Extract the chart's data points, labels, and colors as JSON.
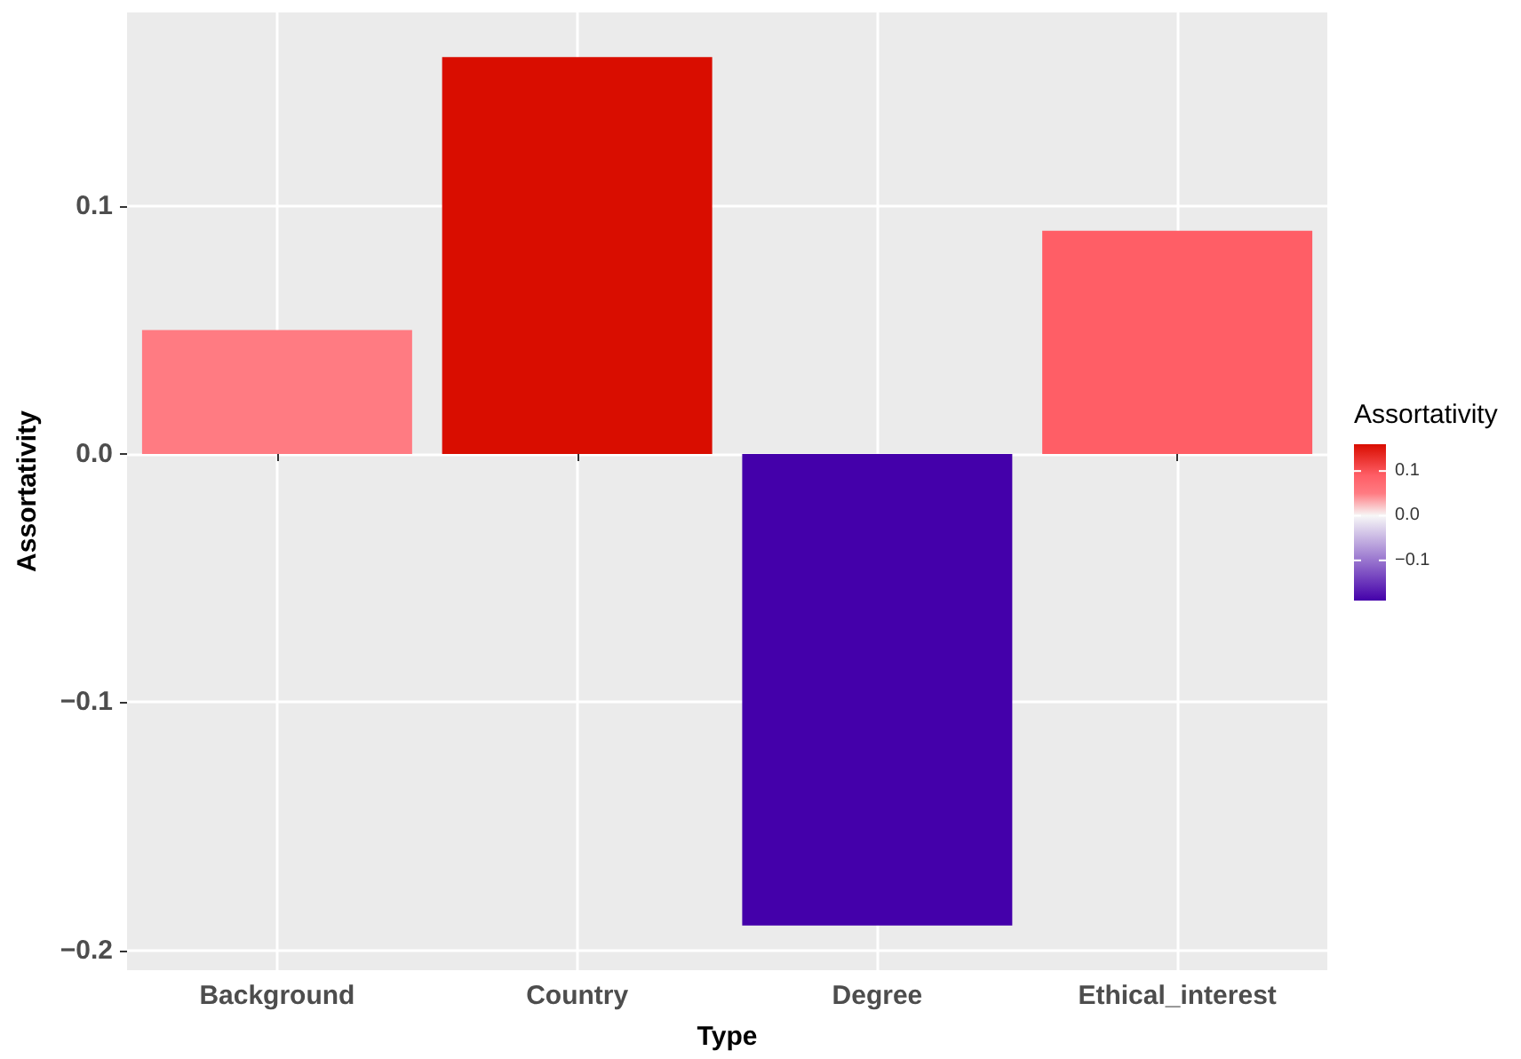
{
  "chart_data": {
    "type": "bar",
    "xlabel": "Type",
    "ylabel": "Assortativity",
    "clabel": "Assortativity",
    "categories": [
      "Background",
      "Country",
      "Degree",
      "Ethical_interest"
    ],
    "values": [
      0.05,
      0.16,
      -0.19,
      0.09
    ],
    "colors": [
      "#ff7b82",
      "#d90d00",
      "#4400aa",
      "#ff5e66"
    ],
    "ylim": [
      -0.208,
      0.178
    ],
    "yticks": [
      {
        "value": -0.2,
        "label": "−0.2"
      },
      {
        "value": -0.1,
        "label": "−0.1"
      },
      {
        "value": 0,
        "label": "0.0"
      },
      {
        "value": 0.1,
        "label": "0.1"
      }
    ],
    "clim": [
      -0.19,
      0.16
    ],
    "cticks": [
      {
        "value": -0.1,
        "label": "−0.1"
      },
      {
        "value": 0,
        "label": "0.0"
      },
      {
        "value": 0.1,
        "label": "0.1"
      }
    ],
    "grid": true
  }
}
